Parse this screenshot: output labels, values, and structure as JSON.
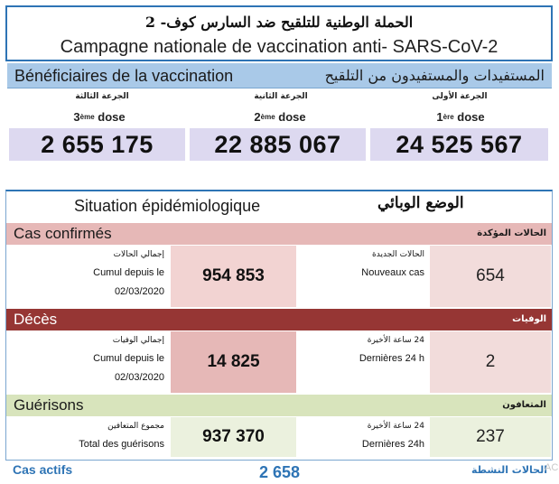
{
  "header": {
    "title_ar": "الحملة الوطنية للتلقيح ضد السارس كوف- 2",
    "title_fr": "Campagne nationale de vaccination anti- SARS-CoV-2"
  },
  "beneficiaries": {
    "label_fr": "Bénéficiaires de la vaccination",
    "label_ar": "المستفيدات والمستفيدون من التلقيح",
    "doses": [
      {
        "label_ar": "الجرعة الثالثة",
        "ord_num": "3",
        "ord_sup": "ème",
        "word": "dose",
        "value": "2 655 175"
      },
      {
        "label_ar": "الجرعة الثانية",
        "ord_num": "2",
        "ord_sup": "ème",
        "word": "dose",
        "value": "22 885 067"
      },
      {
        "label_ar": "الجرعة الأولى",
        "ord_num": "1",
        "ord_sup": "ère",
        "word": "dose",
        "value": "24 525 567"
      }
    ]
  },
  "epidemiology": {
    "title_fr": "Situation épidémiologique",
    "title_ar": "الوضع الوبائي",
    "confirmed": {
      "label_fr": "Cas confirmés",
      "label_ar": "الحالات المؤكدة",
      "cumul_ar": "إجمالي الحالات",
      "cumul_fr": "Cumul depuis le",
      "cumul_date": "02/03/2020",
      "cumul_value": "954 853",
      "new_ar": "الحالات الجديدة",
      "new_fr": "Nouveaux cas",
      "new_value": "654",
      "colors": {
        "band": "#e6b8b7",
        "cell": "#f2d3d2",
        "box": "#f2dcdb"
      }
    },
    "deaths": {
      "label_fr": "Décès",
      "label_ar": "الوفيات",
      "cumul_ar": "إجمالي الوفيات",
      "cumul_fr": "Cumul depuis le",
      "cumul_date": "02/03/2020",
      "cumul_value": "14 825",
      "new_ar": "24 ساعة الأخيرة",
      "new_fr": "Dernières 24 h",
      "new_value": "2",
      "colors": {
        "band": "#963634",
        "cell": "#e6b8b7",
        "box": "#f2dcdb"
      }
    },
    "recoveries": {
      "label_fr": "Guérisons",
      "label_ar": "المتعافون",
      "cumul_ar": "مجموع المتعافين",
      "cumul_fr": "Total des guérisons",
      "cumul_value": "937 370",
      "new_ar": "24 ساعة الأخيرة",
      "new_fr": "Dernières 24h",
      "new_value": "237",
      "colors": {
        "band": "#d8e4bc",
        "cell": "#ebf1de",
        "box": "#ebf1de"
      }
    },
    "active": {
      "label_fr": "Cas actifs",
      "value": "2 658",
      "label_ar": "الحالات النشطة",
      "color": "#2e74b5"
    }
  },
  "watermark": "AC"
}
